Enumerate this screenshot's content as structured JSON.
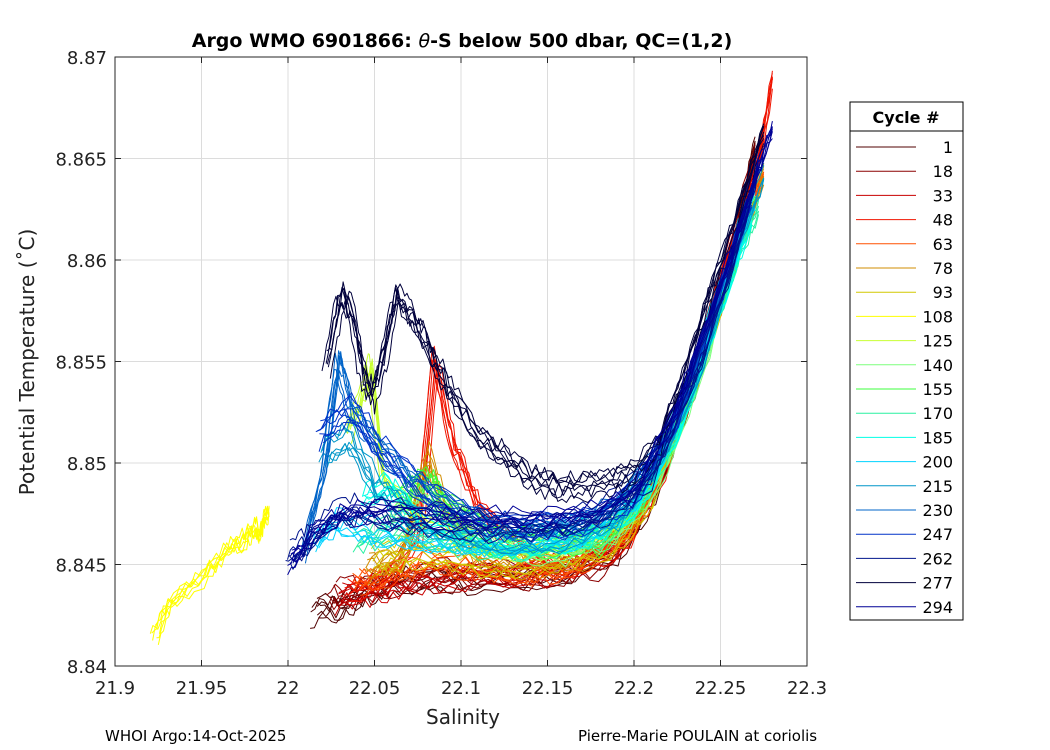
{
  "chart_data": {
    "type": "line",
    "title_prefix": "Argo WMO 6901866: ",
    "title_symbol": "θ",
    "title_suffix": "-S below 500 dbar,  QC=(1,2)",
    "xlabel": "Salinity",
    "ylabel": "Potential Temperature (˚C)",
    "xlim": [
      21.9,
      22.3
    ],
    "ylim": [
      8.84,
      8.87
    ],
    "xticks": [
      21.9,
      21.95,
      22,
      22.05,
      22.1,
      22.15,
      22.2,
      22.25,
      22.3
    ],
    "xtick_labels": [
      "21.9",
      "21.95",
      "22",
      "22.05",
      "22.1",
      "22.15",
      "22.2",
      "22.25",
      "22.3"
    ],
    "yticks": [
      8.84,
      8.845,
      8.85,
      8.855,
      8.86,
      8.865,
      8.87
    ],
    "ytick_labels": [
      "8.84",
      "8.845",
      "8.85",
      "8.855",
      "8.86",
      "8.865",
      "8.87"
    ],
    "grid": true,
    "legend_title": "Cycle #",
    "legend_position": "right, outside",
    "legend": [
      {
        "cycle": "1",
        "color": "#500000"
      },
      {
        "cycle": "18",
        "color": "#8c0000"
      },
      {
        "cycle": "33",
        "color": "#c80000"
      },
      {
        "cycle": "48",
        "color": "#f01400"
      },
      {
        "cycle": "63",
        "color": "#ff5000"
      },
      {
        "cycle": "78",
        "color": "#d28c00"
      },
      {
        "cycle": "93",
        "color": "#d2c800"
      },
      {
        "cycle": "108",
        "color": "#ffff00"
      },
      {
        "cycle": "125",
        "color": "#c8ff32"
      },
      {
        "cycle": "140",
        "color": "#7dff7d"
      },
      {
        "cycle": "155",
        "color": "#3cff3c"
      },
      {
        "cycle": "170",
        "color": "#28f0a0"
      },
      {
        "cycle": "185",
        "color": "#00ffe6"
      },
      {
        "cycle": "200",
        "color": "#00d2ff"
      },
      {
        "cycle": "215",
        "color": "#0096c8"
      },
      {
        "cycle": "230",
        "color": "#0064c8"
      },
      {
        "cycle": "247",
        "color": "#0032c8"
      },
      {
        "cycle": "262",
        "color": "#00148c"
      },
      {
        "cycle": "277",
        "color": "#00003c"
      },
      {
        "cycle": "294",
        "color": "#000096"
      }
    ],
    "profiles": [
      {
        "cycle": "1",
        "color": "#500000",
        "points": [
          [
            22.015,
            8.8426
          ],
          [
            22.03,
            8.8428
          ],
          [
            22.045,
            8.8435
          ],
          [
            22.06,
            8.844
          ],
          [
            22.08,
            8.8442
          ],
          [
            22.1,
            8.8443
          ],
          [
            22.13,
            8.8442
          ],
          [
            22.16,
            8.8445
          ],
          [
            22.19,
            8.8455
          ],
          [
            22.21,
            8.848
          ],
          [
            22.23,
            8.8525
          ],
          [
            22.245,
            8.857
          ],
          [
            22.26,
            8.8615
          ],
          [
            22.27,
            8.8655
          ]
        ]
      },
      {
        "cycle": "18",
        "color": "#8c0000",
        "points": [
          [
            22.025,
            8.8435
          ],
          [
            22.04,
            8.8438
          ],
          [
            22.06,
            8.8442
          ],
          [
            22.09,
            8.8445
          ],
          [
            22.12,
            8.8444
          ],
          [
            22.15,
            8.8446
          ],
          [
            22.18,
            8.845
          ],
          [
            22.2,
            8.847
          ],
          [
            22.22,
            8.851
          ],
          [
            22.24,
            8.856
          ],
          [
            22.255,
            8.8605
          ],
          [
            22.27,
            8.8652
          ]
        ]
      },
      {
        "cycle": "33",
        "color": "#c80000",
        "points": [
          [
            22.03,
            8.8432
          ],
          [
            22.05,
            8.8436
          ],
          [
            22.07,
            8.8441
          ],
          [
            22.1,
            8.8444
          ],
          [
            22.13,
            8.8443
          ],
          [
            22.16,
            8.8447
          ],
          [
            22.19,
            8.8458
          ],
          [
            22.215,
            8.849
          ],
          [
            22.235,
            8.854
          ],
          [
            22.25,
            8.8585
          ],
          [
            22.265,
            8.863
          ],
          [
            22.275,
            8.866
          ]
        ]
      },
      {
        "cycle": "48",
        "color": "#f01400",
        "points": [
          [
            22.035,
            8.8438
          ],
          [
            22.055,
            8.8443
          ],
          [
            22.075,
            8.8462
          ],
          [
            22.085,
            8.8552
          ],
          [
            22.095,
            8.851
          ],
          [
            22.11,
            8.848
          ],
          [
            22.14,
            8.8452
          ],
          [
            22.17,
            8.8452
          ],
          [
            22.195,
            8.8462
          ],
          [
            22.215,
            8.8492
          ],
          [
            22.235,
            8.8542
          ],
          [
            22.25,
            8.859
          ],
          [
            22.27,
            8.8638
          ],
          [
            22.28,
            8.869
          ]
        ]
      },
      {
        "cycle": "63",
        "color": "#ff5000",
        "points": [
          [
            22.04,
            8.8442
          ],
          [
            22.06,
            8.8446
          ],
          [
            22.08,
            8.8452
          ],
          [
            22.11,
            8.8448
          ],
          [
            22.14,
            8.8446
          ],
          [
            22.17,
            8.845
          ],
          [
            22.2,
            8.8468
          ],
          [
            22.22,
            8.8505
          ],
          [
            22.24,
            8.8555
          ],
          [
            22.26,
            8.8605
          ],
          [
            22.275,
            8.8645
          ]
        ]
      },
      {
        "cycle": "78",
        "color": "#d28c00",
        "points": [
          [
            22.045,
            8.8447
          ],
          [
            22.065,
            8.8452
          ],
          [
            22.08,
            8.8502
          ],
          [
            22.09,
            8.8478
          ],
          [
            22.11,
            8.8454
          ],
          [
            22.14,
            8.8449
          ],
          [
            22.17,
            8.8453
          ],
          [
            22.2,
            8.8472
          ],
          [
            22.225,
            8.8515
          ],
          [
            22.245,
            8.8565
          ],
          [
            22.262,
            8.861
          ],
          [
            22.275,
            8.8642
          ]
        ]
      },
      {
        "cycle": "93",
        "color": "#d2c800",
        "points": [
          [
            22.05,
            8.8452
          ],
          [
            22.07,
            8.8456
          ],
          [
            22.1,
            8.8452
          ],
          [
            22.13,
            8.8451
          ],
          [
            22.16,
            8.8455
          ],
          [
            22.19,
            8.8462
          ],
          [
            22.21,
            8.8485
          ],
          [
            22.23,
            8.853
          ],
          [
            22.25,
            8.858
          ],
          [
            22.268,
            8.8625
          ]
        ]
      },
      {
        "cycle": "108",
        "color": "#ffff00",
        "points": [
          [
            21.923,
            8.8416
          ],
          [
            21.932,
            8.8432
          ],
          [
            21.95,
            8.8444
          ],
          [
            21.965,
            8.8458
          ],
          [
            21.975,
            8.8463
          ],
          [
            21.98,
            8.8468
          ],
          [
            21.984,
            8.8465
          ],
          [
            21.986,
            8.8473
          ],
          [
            21.989,
            8.8476
          ]
        ]
      },
      {
        "cycle": "125",
        "color": "#c8ff32",
        "points": [
          [
            22.035,
            8.8515
          ],
          [
            22.045,
            8.8538
          ],
          [
            22.048,
            8.8547
          ],
          [
            22.055,
            8.8492
          ],
          [
            22.08,
            8.8468
          ],
          [
            22.11,
            8.8458
          ],
          [
            22.14,
            8.8456
          ],
          [
            22.17,
            8.8458
          ],
          [
            22.2,
            8.8475
          ],
          [
            22.23,
            8.853
          ],
          [
            22.255,
            8.8595
          ]
        ]
      },
      {
        "cycle": "140",
        "color": "#7dff7d",
        "points": [
          [
            22.06,
            8.8478
          ],
          [
            22.075,
            8.8488
          ],
          [
            22.085,
            8.8484
          ],
          [
            22.1,
            8.8468
          ],
          [
            22.13,
            8.8458
          ],
          [
            22.16,
            8.8458
          ],
          [
            22.19,
            8.8466
          ],
          [
            22.215,
            8.8495
          ],
          [
            22.24,
            8.855
          ],
          [
            22.262,
            8.8615
          ]
        ]
      },
      {
        "cycle": "155",
        "color": "#3cff3c",
        "points": [
          [
            22.065,
            8.8482
          ],
          [
            22.08,
            8.8492
          ],
          [
            22.09,
            8.8478
          ],
          [
            22.12,
            8.8462
          ],
          [
            22.15,
            8.846
          ],
          [
            22.18,
            8.8462
          ],
          [
            22.205,
            8.8482
          ],
          [
            22.23,
            8.8528
          ],
          [
            22.255,
            8.8592
          ],
          [
            22.27,
            8.8632
          ]
        ]
      },
      {
        "cycle": "170",
        "color": "#28f0a0",
        "points": [
          [
            22.04,
            8.8462
          ],
          [
            22.06,
            8.8468
          ],
          [
            22.09,
            8.8462
          ],
          [
            22.12,
            8.8459
          ],
          [
            22.15,
            8.8461
          ],
          [
            22.18,
            8.8465
          ],
          [
            22.21,
            8.849
          ],
          [
            22.235,
            8.854
          ],
          [
            22.26,
            8.8605
          ],
          [
            22.272,
            8.8628
          ]
        ]
      },
      {
        "cycle": "185",
        "color": "#00ffe6",
        "points": [
          [
            22.045,
            8.8485
          ],
          [
            22.06,
            8.8492
          ],
          [
            22.08,
            8.8472
          ],
          [
            22.11,
            8.8462
          ],
          [
            22.14,
            8.846
          ],
          [
            22.17,
            8.8463
          ],
          [
            22.2,
            8.8478
          ],
          [
            22.225,
            8.8515
          ],
          [
            22.25,
            8.8578
          ],
          [
            22.268,
            8.8622
          ]
        ]
      },
      {
        "cycle": "200",
        "color": "#00d2ff",
        "points": [
          [
            22.015,
            8.8462
          ],
          [
            22.03,
            8.8472
          ],
          [
            22.05,
            8.8466
          ],
          [
            22.08,
            8.8463
          ],
          [
            22.11,
            8.846
          ],
          [
            22.14,
            8.8461
          ],
          [
            22.17,
            8.8465
          ],
          [
            22.2,
            8.848
          ],
          [
            22.225,
            8.852
          ],
          [
            22.25,
            8.8585
          ],
          [
            22.27,
            8.863
          ]
        ]
      },
      {
        "cycle": "215",
        "color": "#0096c8",
        "points": [
          [
            22.02,
            8.8505
          ],
          [
            22.035,
            8.8515
          ],
          [
            22.05,
            8.849
          ],
          [
            22.07,
            8.8475
          ],
          [
            22.1,
            8.8466
          ],
          [
            22.13,
            8.8462
          ],
          [
            22.16,
            8.8464
          ],
          [
            22.19,
            8.8475
          ],
          [
            22.215,
            8.8505
          ],
          [
            22.24,
            8.8555
          ],
          [
            22.26,
            8.8612
          ],
          [
            22.275,
            8.8645
          ]
        ]
      },
      {
        "cycle": "230",
        "color": "#0064c8",
        "points": [
          [
            22.008,
            8.8455
          ],
          [
            22.02,
            8.8495
          ],
          [
            22.028,
            8.855
          ],
          [
            22.035,
            8.8525
          ],
          [
            22.05,
            8.8508
          ],
          [
            22.07,
            8.849
          ],
          [
            22.1,
            8.8472
          ],
          [
            22.13,
            8.8466
          ],
          [
            22.16,
            8.8467
          ],
          [
            22.19,
            8.8478
          ],
          [
            22.22,
            8.851
          ],
          [
            22.245,
            8.8568
          ],
          [
            22.265,
            8.8625
          ]
        ]
      },
      {
        "cycle": "247",
        "color": "#0032c8",
        "points": [
          [
            22.018,
            8.8515
          ],
          [
            22.035,
            8.8528
          ],
          [
            22.055,
            8.8505
          ],
          [
            22.08,
            8.8485
          ],
          [
            22.11,
            8.8472
          ],
          [
            22.14,
            8.8468
          ],
          [
            22.17,
            8.847
          ],
          [
            22.2,
            8.8485
          ],
          [
            22.225,
            8.8525
          ],
          [
            22.248,
            8.858
          ],
          [
            22.268,
            8.8632
          ]
        ]
      },
      {
        "cycle": "262",
        "color": "#00148c",
        "points": [
          [
            22.0,
            8.8455
          ],
          [
            22.01,
            8.8462
          ],
          [
            22.025,
            8.8475
          ],
          [
            22.04,
            8.8478
          ],
          [
            22.06,
            8.8474
          ],
          [
            22.09,
            8.8471
          ],
          [
            22.12,
            8.8469
          ],
          [
            22.15,
            8.847
          ],
          [
            22.18,
            8.8475
          ],
          [
            22.21,
            8.8495
          ],
          [
            22.235,
            8.8545
          ],
          [
            22.258,
            8.8605
          ],
          [
            22.272,
            8.865
          ]
        ]
      },
      {
        "cycle": "277",
        "color": "#00003c",
        "points": [
          [
            22.022,
            8.8548
          ],
          [
            22.03,
            8.8582
          ],
          [
            22.037,
            8.8572
          ],
          [
            22.043,
            8.8542
          ],
          [
            22.048,
            8.8532
          ],
          [
            22.055,
            8.8552
          ],
          [
            22.062,
            8.8582
          ],
          [
            22.07,
            8.8572
          ],
          [
            22.078,
            8.8562
          ],
          [
            22.085,
            8.8548
          ],
          [
            22.095,
            8.8532
          ],
          [
            22.11,
            8.8512
          ],
          [
            22.125,
            8.8502
          ],
          [
            22.14,
            8.8492
          ],
          [
            22.155,
            8.8488
          ],
          [
            22.17,
            8.8488
          ],
          [
            22.185,
            8.849
          ],
          [
            22.2,
            8.8495
          ],
          [
            22.215,
            8.851
          ],
          [
            22.23,
            8.8545
          ],
          [
            22.245,
            8.8585
          ],
          [
            22.26,
            8.8622
          ],
          [
            22.275,
            8.8662
          ]
        ]
      },
      {
        "cycle": "294",
        "color": "#000096",
        "points": [
          [
            22.002,
            8.8452
          ],
          [
            22.015,
            8.8465
          ],
          [
            22.03,
            8.8475
          ],
          [
            22.05,
            8.8478
          ],
          [
            22.08,
            8.8476
          ],
          [
            22.11,
            8.8473
          ],
          [
            22.14,
            8.8472
          ],
          [
            22.17,
            8.8474
          ],
          [
            22.2,
            8.8486
          ],
          [
            22.225,
            8.8528
          ],
          [
            22.25,
            8.8588
          ],
          [
            22.27,
            8.864
          ],
          [
            22.28,
            8.8665
          ]
        ]
      }
    ]
  },
  "footer": {
    "left": "WHOI Argo:14-Oct-2025",
    "right": "Pierre-Marie POULAIN at coriolis"
  }
}
